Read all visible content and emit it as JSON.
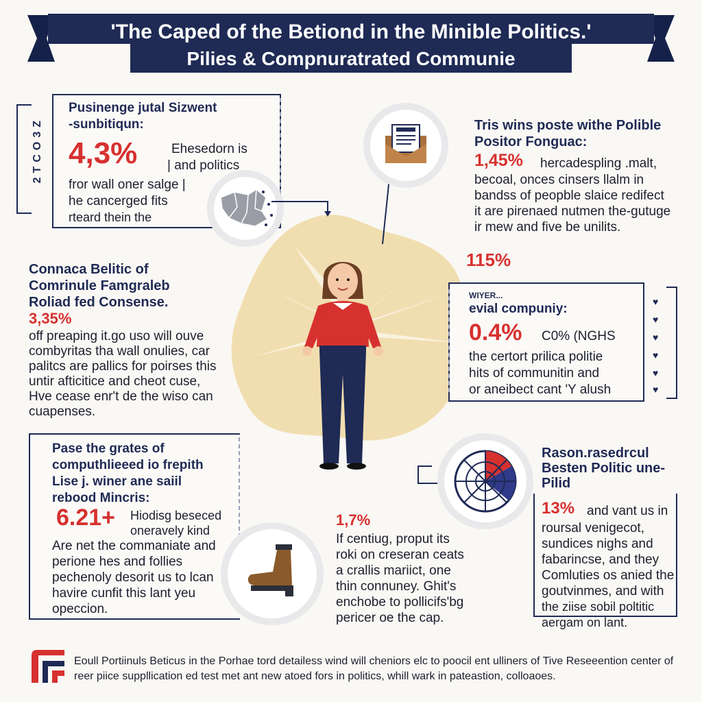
{
  "banner": {
    "line1": "'The Caped of the Betiond in the Minible Politics.'",
    "line2": "Pilies & Compnuratrated Communie"
  },
  "side_ruler": {
    "label": "2TCO3Z"
  },
  "box1": {
    "heading1": "Pusinenge jutal Sizwent",
    "heading2": "-sunbitiqun:",
    "stat": "4,3%",
    "stat_side": [
      "Ehesedorn is",
      "| and politics"
    ],
    "lines": [
      "fror wall oner salge |",
      "he cancerged fits",
      "rteard thein the"
    ]
  },
  "right_top": {
    "heading1": "Tris wins poste withe Polible",
    "heading2": "Positor Fonguac:",
    "stat": "1,45%",
    "stat_text": "hercadespling .malt,",
    "lines": [
      "becoal, onces cinsers llalm in",
      "bandss of peopble slaice redifect",
      "it are pirenaed nutmen the-gutuge",
      "ir mew and five be unilits."
    ]
  },
  "left_mid": {
    "heading": [
      "Connaca Belitic of",
      "Comrinule Famgraleb",
      "Roliad fed Consense."
    ],
    "stat": "3,35%",
    "lines": [
      "off preaping it.go uso will ouve",
      "combyritas tha wall onulies, car",
      "palitcs are pallics for poirses this",
      "untir afticitice and cheot cuse,",
      "Hve cease enr't de the wiso can",
      "cuapenses."
    ]
  },
  "float_stat": "115%",
  "right_mid": {
    "small": "WIYER...",
    "heading": "evial compuniy:",
    "stat": "0.4%",
    "stat_text": "C0% (NGHS",
    "lines": [
      "the certort prilica politie",
      "hits of communitin and",
      "or aneibect cant 'Y alush"
    ]
  },
  "left_bottom": {
    "heading": [
      "Pase the grates of",
      "computhlieeed io frepith",
      "Lise j. winer ane saiil",
      "rebood Mincris:"
    ],
    "stat": "6.21+",
    "stat_side": [
      "Hiodisg beseced",
      "oneravely kind"
    ],
    "lines": [
      "Are net the commaniate and",
      "perione hes and follies",
      "pechenoly desorit us to lcan",
      "havire cunfit this lant yeu",
      "opeccion."
    ]
  },
  "center_bottom": {
    "stat": "1,7%",
    "lines": [
      "If centiug, proput its",
      "roki on creseran ceats",
      "a crallis mariict, one",
      "thin connuney. Ghit's",
      "enchobe to pollicifs'bg",
      "pericer oe the cap."
    ]
  },
  "right_bottom": {
    "heading": [
      "Rason.rasedrcul",
      "Besten Politic une-",
      "Pilid"
    ],
    "stat": "13%",
    "stat_text": "and vant us in",
    "lines": [
      "roursal venigecot,",
      "sundices nighs and",
      "fabarincse, and they",
      "Comluties os anied the",
      "goutvinmes, and with",
      "the ziise sobil poltitic",
      "aergam on lant."
    ]
  },
  "footer": {
    "line1": "Eoull Portiinuls Beticus in the Porhae tord detailess wind will cheniors elc to poocil ent ulliners of Tive Reseeention center of",
    "line2": "reer piice suppllication ed test met ant new atoed fors in politics, whill wark in pateastion, colloaoes."
  },
  "colors": {
    "navy": "#1f2a55",
    "red": "#d6312f",
    "beige": "#f1deb0",
    "background": "#faf8f4"
  },
  "icons": [
    "envelope-icon",
    "map-icon",
    "boot-icon",
    "pie-chart-icon",
    "heart-icon",
    "logo-icon"
  ]
}
